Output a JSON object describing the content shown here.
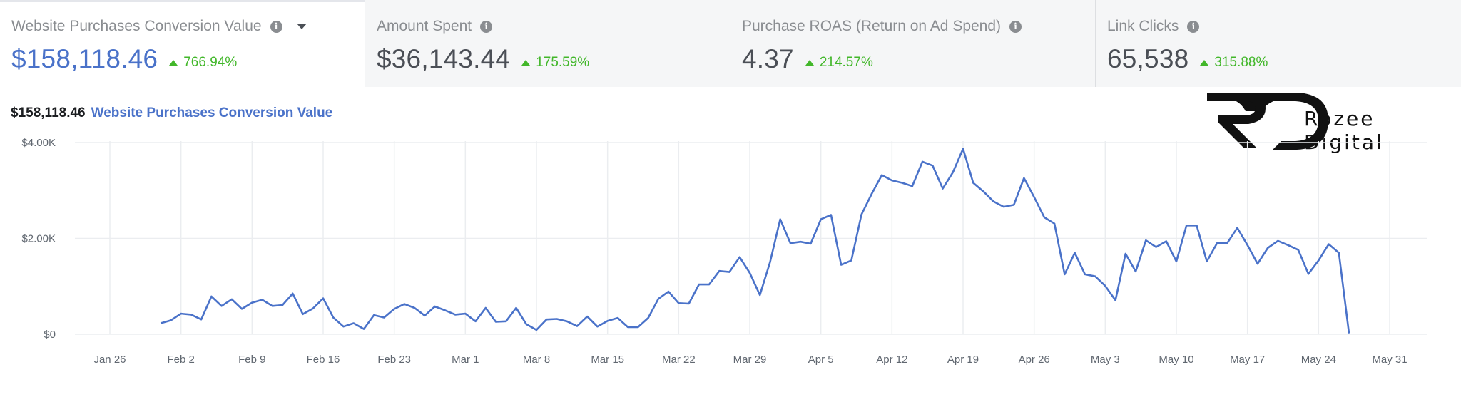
{
  "tabs": [
    {
      "title": "Website Purchases Conversion Value",
      "value": "$158,118.46",
      "change": "766.94%",
      "active": true
    },
    {
      "title": "Amount Spent",
      "value": "$36,143.44",
      "change": "175.59%",
      "active": false
    },
    {
      "title": "Purchase ROAS (Return on Ad Spend)",
      "value": "4.37",
      "change": "214.57%",
      "active": false
    },
    {
      "title": "Link Clicks",
      "value": "65,538",
      "change": "315.88%",
      "active": false
    }
  ],
  "chart_header": {
    "total": "$158,118.46",
    "metric": "Website Purchases Conversion Value"
  },
  "logo": {
    "text": "Rozee Digital"
  },
  "colors": {
    "accent": "#4a72c9",
    "positive": "#42b72a",
    "grid": "#ebedf0"
  },
  "chart_data": {
    "type": "line",
    "title": "",
    "xlabel": "",
    "ylabel": "",
    "ylim": [
      0,
      4000
    ],
    "xlim": [
      "2020-01-26",
      "2020-05-31"
    ],
    "y_ticks": [
      {
        "value": 0,
        "label": "$0"
      },
      {
        "value": 2000,
        "label": "$2.00K"
      },
      {
        "value": 4000,
        "label": "$4.00K"
      }
    ],
    "x_ticks": [
      {
        "date": "2020-01-26",
        "label": "Jan 26"
      },
      {
        "date": "2020-02-02",
        "label": "Feb 2"
      },
      {
        "date": "2020-02-09",
        "label": "Feb 9"
      },
      {
        "date": "2020-02-16",
        "label": "Feb 16"
      },
      {
        "date": "2020-02-23",
        "label": "Feb 23"
      },
      {
        "date": "2020-03-01",
        "label": "Mar 1"
      },
      {
        "date": "2020-03-08",
        "label": "Mar 8"
      },
      {
        "date": "2020-03-15",
        "label": "Mar 15"
      },
      {
        "date": "2020-03-22",
        "label": "Mar 22"
      },
      {
        "date": "2020-03-29",
        "label": "Mar 29"
      },
      {
        "date": "2020-04-05",
        "label": "Apr 5"
      },
      {
        "date": "2020-04-12",
        "label": "Apr 12"
      },
      {
        "date": "2020-04-19",
        "label": "Apr 19"
      },
      {
        "date": "2020-04-26",
        "label": "Apr 26"
      },
      {
        "date": "2020-05-03",
        "label": "May 3"
      },
      {
        "date": "2020-05-10",
        "label": "May 10"
      },
      {
        "date": "2020-05-17",
        "label": "May 17"
      },
      {
        "date": "2020-05-24",
        "label": "May 24"
      },
      {
        "date": "2020-05-31",
        "label": "May 31"
      }
    ],
    "series": [
      {
        "color": "#4a72c9",
        "points": [
          [
            "2020-01-31",
            230
          ],
          [
            "2020-02-01",
            290
          ],
          [
            "2020-02-02",
            430
          ],
          [
            "2020-02-03",
            410
          ],
          [
            "2020-02-04",
            310
          ],
          [
            "2020-02-05",
            790
          ],
          [
            "2020-02-06",
            590
          ],
          [
            "2020-02-07",
            730
          ],
          [
            "2020-02-08",
            530
          ],
          [
            "2020-02-09",
            660
          ],
          [
            "2020-02-10",
            720
          ],
          [
            "2020-02-11",
            590
          ],
          [
            "2020-02-12",
            610
          ],
          [
            "2020-02-13",
            850
          ],
          [
            "2020-02-14",
            420
          ],
          [
            "2020-02-15",
            540
          ],
          [
            "2020-02-16",
            750
          ],
          [
            "2020-02-17",
            350
          ],
          [
            "2020-02-18",
            160
          ],
          [
            "2020-02-19",
            230
          ],
          [
            "2020-02-20",
            110
          ],
          [
            "2020-02-21",
            400
          ],
          [
            "2020-02-22",
            350
          ],
          [
            "2020-02-23",
            530
          ],
          [
            "2020-02-24",
            630
          ],
          [
            "2020-02-25",
            550
          ],
          [
            "2020-02-26",
            390
          ],
          [
            "2020-02-27",
            580
          ],
          [
            "2020-02-28",
            500
          ],
          [
            "2020-02-29",
            410
          ],
          [
            "2020-03-01",
            430
          ],
          [
            "2020-03-02",
            270
          ],
          [
            "2020-03-03",
            550
          ],
          [
            "2020-03-04",
            260
          ],
          [
            "2020-03-05",
            270
          ],
          [
            "2020-03-06",
            550
          ],
          [
            "2020-03-07",
            210
          ],
          [
            "2020-03-08",
            90
          ],
          [
            "2020-03-09",
            310
          ],
          [
            "2020-03-10",
            320
          ],
          [
            "2020-03-11",
            270
          ],
          [
            "2020-03-12",
            170
          ],
          [
            "2020-03-13",
            370
          ],
          [
            "2020-03-14",
            160
          ],
          [
            "2020-03-15",
            280
          ],
          [
            "2020-03-16",
            340
          ],
          [
            "2020-03-17",
            150
          ],
          [
            "2020-03-18",
            150
          ],
          [
            "2020-03-19",
            340
          ],
          [
            "2020-03-20",
            740
          ],
          [
            "2020-03-21",
            890
          ],
          [
            "2020-03-22",
            650
          ],
          [
            "2020-03-23",
            640
          ],
          [
            "2020-03-24",
            1040
          ],
          [
            "2020-03-25",
            1040
          ],
          [
            "2020-03-26",
            1320
          ],
          [
            "2020-03-27",
            1300
          ],
          [
            "2020-03-28",
            1610
          ],
          [
            "2020-03-29",
            1280
          ],
          [
            "2020-03-30",
            820
          ],
          [
            "2020-03-31",
            1510
          ],
          [
            "2020-04-01",
            2400
          ],
          [
            "2020-04-02",
            1900
          ],
          [
            "2020-04-03",
            1930
          ],
          [
            "2020-04-04",
            1890
          ],
          [
            "2020-04-05",
            2400
          ],
          [
            "2020-04-06",
            2490
          ],
          [
            "2020-04-07",
            1450
          ],
          [
            "2020-04-08",
            1540
          ],
          [
            "2020-04-09",
            2500
          ],
          [
            "2020-04-10",
            2930
          ],
          [
            "2020-04-11",
            3320
          ],
          [
            "2020-04-12",
            3210
          ],
          [
            "2020-04-13",
            3160
          ],
          [
            "2020-04-14",
            3090
          ],
          [
            "2020-04-15",
            3600
          ],
          [
            "2020-04-16",
            3520
          ],
          [
            "2020-04-17",
            3040
          ],
          [
            "2020-04-18",
            3380
          ],
          [
            "2020-04-19",
            3870
          ],
          [
            "2020-04-20",
            3160
          ],
          [
            "2020-04-21",
            2980
          ],
          [
            "2020-04-22",
            2770
          ],
          [
            "2020-04-23",
            2660
          ],
          [
            "2020-04-24",
            2700
          ],
          [
            "2020-04-25",
            3260
          ],
          [
            "2020-04-26",
            2860
          ],
          [
            "2020-04-27",
            2440
          ],
          [
            "2020-04-28",
            2310
          ],
          [
            "2020-04-29",
            1250
          ],
          [
            "2020-04-30",
            1700
          ],
          [
            "2020-05-01",
            1250
          ],
          [
            "2020-05-02",
            1210
          ],
          [
            "2020-05-03",
            1010
          ],
          [
            "2020-05-04",
            710
          ],
          [
            "2020-05-05",
            1680
          ],
          [
            "2020-05-06",
            1310
          ],
          [
            "2020-05-07",
            1960
          ],
          [
            "2020-05-08",
            1820
          ],
          [
            "2020-05-09",
            1940
          ],
          [
            "2020-05-10",
            1520
          ],
          [
            "2020-05-11",
            2270
          ],
          [
            "2020-05-12",
            2270
          ],
          [
            "2020-05-13",
            1520
          ],
          [
            "2020-05-14",
            1900
          ],
          [
            "2020-05-15",
            1900
          ],
          [
            "2020-05-16",
            2220
          ],
          [
            "2020-05-17",
            1860
          ],
          [
            "2020-05-18",
            1470
          ],
          [
            "2020-05-19",
            1800
          ],
          [
            "2020-05-20",
            1950
          ],
          [
            "2020-05-21",
            1860
          ],
          [
            "2020-05-22",
            1760
          ],
          [
            "2020-05-23",
            1260
          ],
          [
            "2020-05-24",
            1540
          ],
          [
            "2020-05-25",
            1880
          ],
          [
            "2020-05-26",
            1700
          ],
          [
            "2020-05-27",
            20
          ]
        ]
      }
    ],
    "grid": true,
    "legend": "none"
  }
}
